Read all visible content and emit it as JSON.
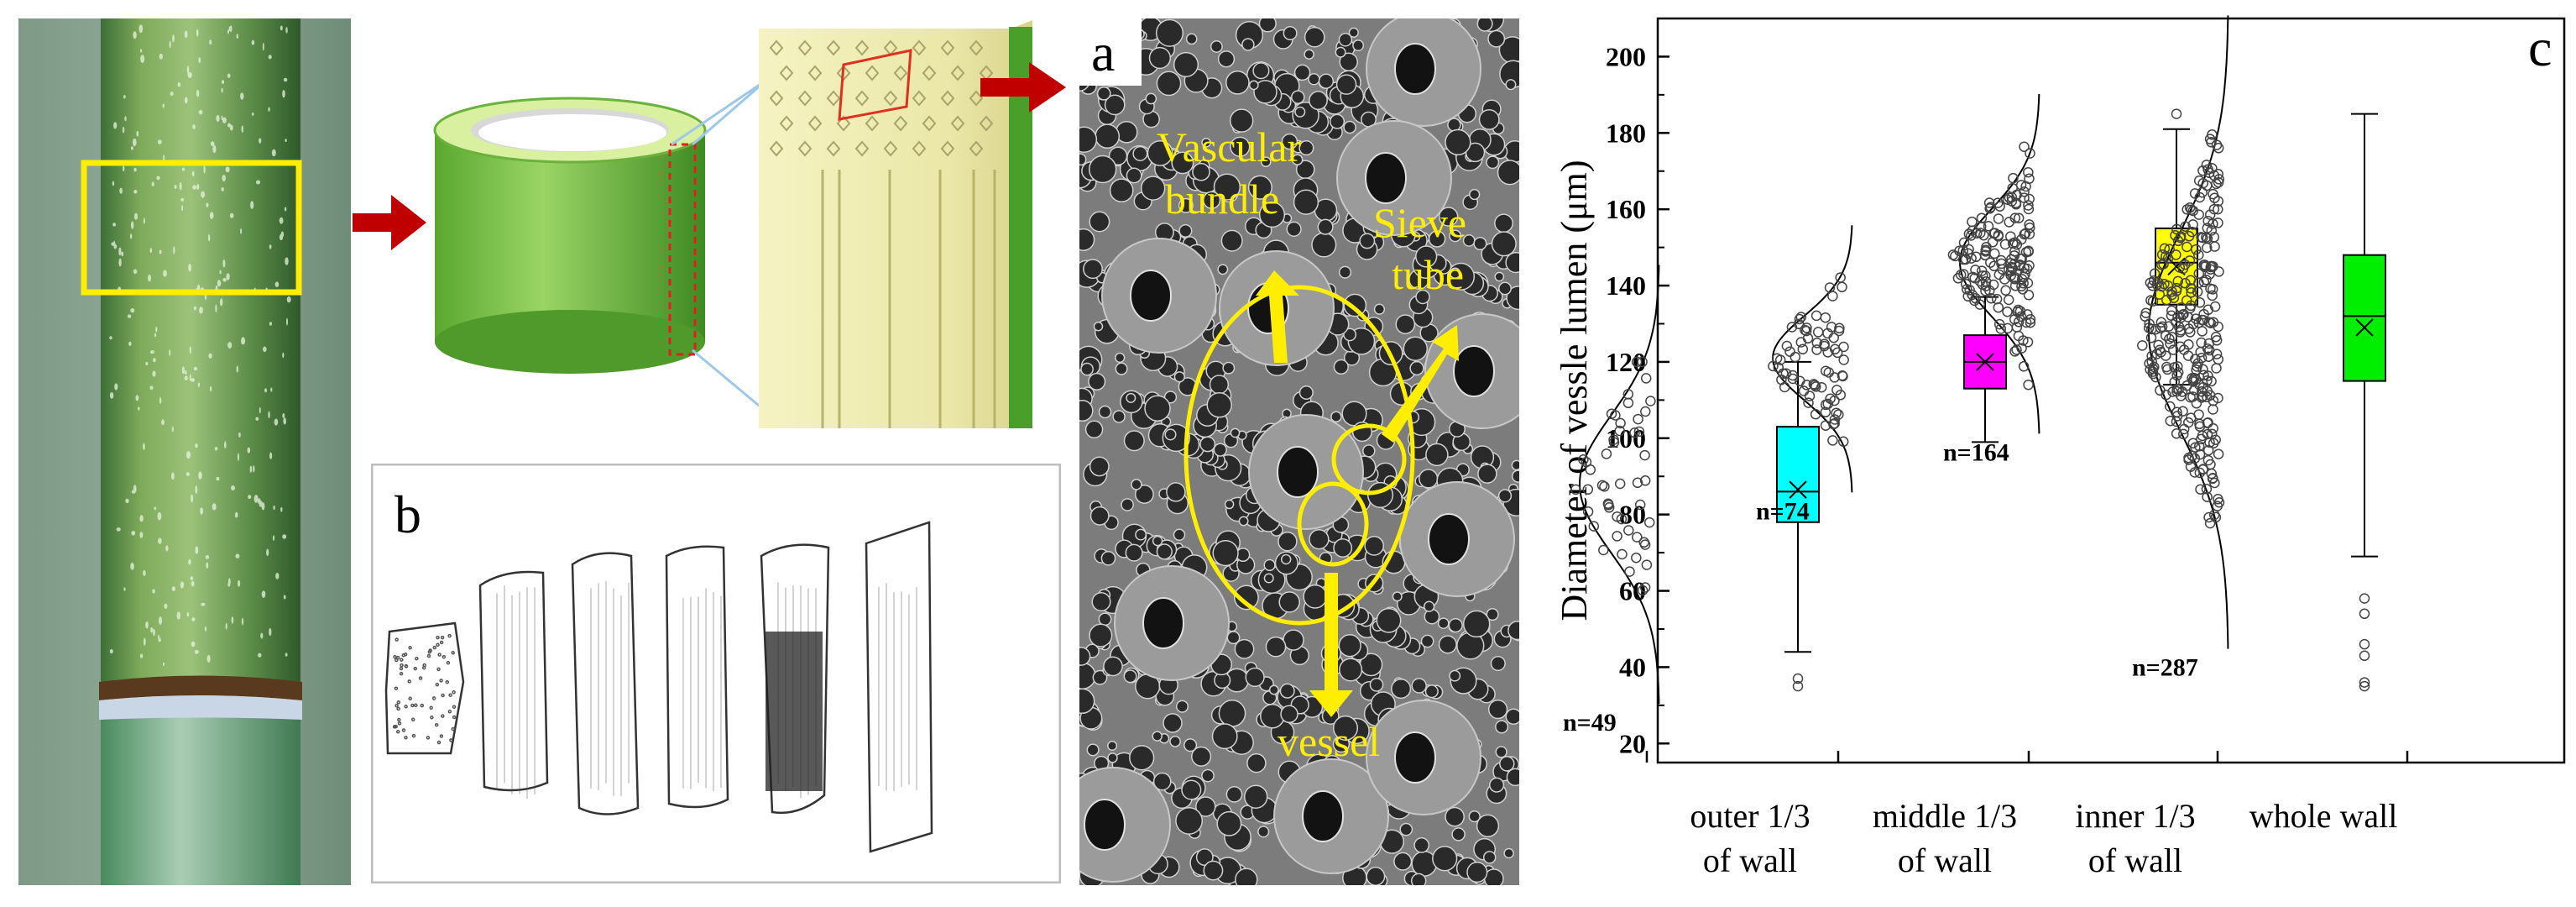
{
  "figure": {
    "panel_labels": {
      "a": "a",
      "b": "b",
      "c": "c"
    }
  },
  "sem_labels": {
    "vascular_line1": "Vascular",
    "vascular_line2": "bundle",
    "sieve_line1": "Sieve",
    "sieve_line2": "tube",
    "vessel": "vessel"
  },
  "colors": {
    "highlight": "#ffee00",
    "arrow": "#c00000",
    "bamboo_green": "#6cba3e",
    "bamboo_inner": "#f2f0b8"
  },
  "chart_data": {
    "type": "box",
    "ylabel": "Diameter of vessle lumen (μm)",
    "ylim": [
      15,
      210
    ],
    "yticks": [
      20,
      40,
      60,
      80,
      100,
      120,
      140,
      160,
      180,
      200
    ],
    "categories": [
      {
        "line1": "outer 1/3",
        "line2": "of wall"
      },
      {
        "line1": "middle 1/3",
        "line2": "of wall"
      },
      {
        "line1": "inner 1/3",
        "line2": "of wall"
      },
      {
        "line1": "whole wall",
        "line2": ""
      }
    ],
    "series": [
      {
        "n_label": "n=49",
        "color": "#00ffff",
        "min": 44,
        "q1": 78,
        "median": 86,
        "mean": 86.5,
        "q3": 103,
        "max": 120,
        "outliers": [
          35,
          37
        ],
        "dist_mean": 88,
        "dist_sd": 18,
        "pts_min": 35,
        "pts_max": 120,
        "n_points": 49
      },
      {
        "n_label": "n=74",
        "color": "#ff00ff",
        "min": 99,
        "q1": 113,
        "median": 120,
        "mean": 120,
        "q3": 127,
        "max": 137,
        "outliers": [
          148
        ],
        "dist_mean": 121,
        "dist_sd": 11,
        "pts_min": 99,
        "pts_max": 148,
        "n_points": 74
      },
      {
        "n_label": "n=164",
        "color": "#ffff00",
        "min": 114,
        "q1": 135,
        "median": 146,
        "mean": 145,
        "q3": 155,
        "max": 181,
        "outliers": [
          185
        ],
        "dist_mean": 146,
        "dist_sd": 14,
        "pts_min": 114,
        "pts_max": 185,
        "n_points": 164
      },
      {
        "n_label": "n=287",
        "color": "#00ee00",
        "min": 69,
        "q1": 115,
        "median": 132,
        "mean": 129,
        "q3": 148,
        "max": 185,
        "outliers": [
          58,
          54,
          46,
          43,
          36,
          35
        ],
        "dist_mean": 128,
        "dist_sd": 26,
        "pts_min": 35,
        "pts_max": 185,
        "n_points": 287
      }
    ]
  }
}
